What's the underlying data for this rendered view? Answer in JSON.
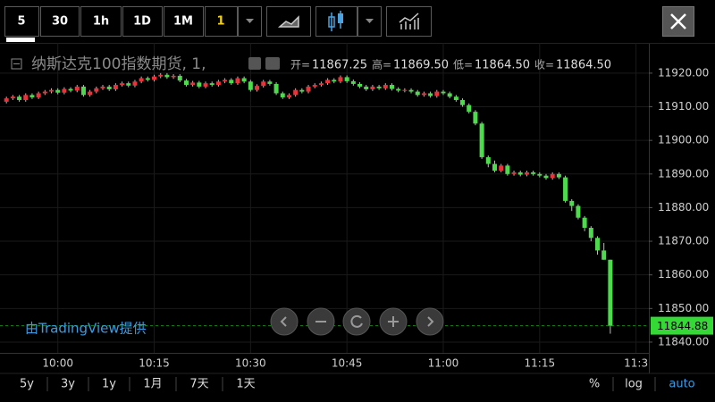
{
  "toolbar": {
    "intervals": [
      "5",
      "30",
      "1h",
      "1D",
      "1M",
      "1"
    ]
  },
  "bottom": {
    "ranges": [
      "5y",
      "3y",
      "1y",
      "1月",
      "7天",
      "1天"
    ],
    "options": [
      "%",
      "log",
      "auto"
    ]
  },
  "watermark": "由TradingView提供",
  "chart_data": {
    "type": "candlestick",
    "title": "纳斯达克100指数期货, 1,",
    "ohlc_legend": [
      {
        "label": "开=",
        "value": "11867.25"
      },
      {
        "label": "高=",
        "value": "11869.50"
      },
      {
        "label": "低=",
        "value": "11864.50"
      },
      {
        "label": "收=",
        "value": "11864.50"
      }
    ],
    "x": [
      "09:52",
      "09:53",
      "09:54",
      "09:55",
      "09:56",
      "09:57",
      "09:58",
      "09:59",
      "10:00",
      "10:01",
      "10:02",
      "10:03",
      "10:04",
      "10:05",
      "10:06",
      "10:07",
      "10:08",
      "10:09",
      "10:10",
      "10:11",
      "10:12",
      "10:13",
      "10:14",
      "10:15",
      "10:16",
      "10:17",
      "10:18",
      "10:19",
      "10:20",
      "10:21",
      "10:22",
      "10:23",
      "10:24",
      "10:25",
      "10:26",
      "10:27",
      "10:28",
      "10:29",
      "10:30",
      "10:31",
      "10:32",
      "10:33",
      "10:34",
      "10:35",
      "10:36",
      "10:37",
      "10:38",
      "10:39",
      "10:40",
      "10:41",
      "10:42",
      "10:43",
      "10:44",
      "10:45",
      "10:46",
      "10:47",
      "10:48",
      "10:49",
      "10:50",
      "10:51",
      "10:52",
      "10:53",
      "10:54",
      "10:55",
      "10:56",
      "10:57",
      "10:58",
      "10:59",
      "11:00",
      "11:01",
      "11:02",
      "11:03",
      "11:04",
      "11:05",
      "11:06",
      "11:07",
      "11:08",
      "11:09",
      "11:10",
      "11:11",
      "11:12",
      "11:13",
      "11:14",
      "11:15",
      "11:16",
      "11:17",
      "11:18",
      "11:19",
      "11:20",
      "11:21",
      "11:22",
      "11:23",
      "11:24",
      "11:25",
      "11:26"
    ],
    "candles": [
      [
        11911.5,
        11913.0,
        11911.0,
        11912.5
      ],
      [
        11912.5,
        11913.5,
        11912.0,
        11913.0
      ],
      [
        11913.0,
        11913.5,
        11911.5,
        11912.0
      ],
      [
        11912.0,
        11914.0,
        11911.5,
        11913.5
      ],
      [
        11913.5,
        11914.0,
        11912.3,
        11912.8
      ],
      [
        11912.8,
        11914.5,
        11912.3,
        11914.0
      ],
      [
        11914.0,
        11915.0,
        11913.5,
        11914.5
      ],
      [
        11914.5,
        11915.5,
        11914.0,
        11915.0
      ],
      [
        11915.0,
        11915.5,
        11913.7,
        11914.2
      ],
      [
        11914.2,
        11915.8,
        11913.7,
        11915.3
      ],
      [
        11915.3,
        11915.8,
        11914.3,
        11914.8
      ],
      [
        11914.8,
        11916.5,
        11914.3,
        11916.0
      ],
      [
        11916.0,
        11916.5,
        11913.0,
        11913.5
      ],
      [
        11913.5,
        11915.0,
        11913.0,
        11914.5
      ],
      [
        11914.5,
        11916.0,
        11914.0,
        11915.5
      ],
      [
        11915.5,
        11916.5,
        11915.0,
        11916.0
      ],
      [
        11916.0,
        11916.5,
        11914.7,
        11915.2
      ],
      [
        11915.2,
        11917.0,
        11914.7,
        11916.5
      ],
      [
        11916.5,
        11917.5,
        11916.0,
        11917.0
      ],
      [
        11917.0,
        11917.5,
        11915.8,
        11916.3
      ],
      [
        11916.3,
        11918.0,
        11915.8,
        11917.5
      ],
      [
        11917.5,
        11919.0,
        11917.0,
        11918.5
      ],
      [
        11918.5,
        11919.0,
        11917.5,
        11918.0
      ],
      [
        11918.0,
        11919.5,
        11917.5,
        11919.0
      ],
      [
        11919.0,
        11920.0,
        11918.5,
        11919.5
      ],
      [
        11919.5,
        11920.0,
        11918.3,
        11918.8
      ],
      [
        11918.8,
        11919.7,
        11918.3,
        11919.2
      ],
      [
        11919.2,
        11919.7,
        11917.3,
        11917.8
      ],
      [
        11917.8,
        11918.3,
        11916.0,
        11916.5
      ],
      [
        11916.5,
        11917.7,
        11916.0,
        11917.2
      ],
      [
        11917.2,
        11917.7,
        11915.5,
        11916.0
      ],
      [
        11916.0,
        11917.5,
        11915.5,
        11917.0
      ],
      [
        11917.0,
        11917.5,
        11916.0,
        11916.5
      ],
      [
        11916.5,
        11918.0,
        11916.0,
        11917.5
      ],
      [
        11917.5,
        11918.5,
        11917.0,
        11918.0
      ],
      [
        11918.0,
        11918.5,
        11916.5,
        11917.0
      ],
      [
        11917.0,
        11919.0,
        11916.5,
        11918.5
      ],
      [
        11918.5,
        11919.0,
        11917.0,
        11917.5
      ],
      [
        11917.5,
        11918.0,
        11914.5,
        11915.0
      ],
      [
        11915.0,
        11916.7,
        11914.5,
        11916.2
      ],
      [
        11916.2,
        11918.0,
        11915.7,
        11917.5
      ],
      [
        11917.5,
        11918.0,
        11916.3,
        11916.8
      ],
      [
        11916.8,
        11917.3,
        11913.5,
        11914.0
      ],
      [
        11914.0,
        11914.5,
        11912.3,
        11912.8
      ],
      [
        11912.8,
        11914.0,
        11912.3,
        11913.5
      ],
      [
        11913.5,
        11915.5,
        11913.0,
        11915.0
      ],
      [
        11915.0,
        11915.5,
        11914.0,
        11914.5
      ],
      [
        11914.5,
        11916.5,
        11914.0,
        11916.0
      ],
      [
        11916.0,
        11917.0,
        11915.5,
        11916.5
      ],
      [
        11916.5,
        11917.5,
        11916.0,
        11917.0
      ],
      [
        11917.0,
        11918.5,
        11916.5,
        11918.0
      ],
      [
        11918.0,
        11918.5,
        11917.0,
        11917.5
      ],
      [
        11917.5,
        11919.3,
        11917.0,
        11918.8
      ],
      [
        11918.8,
        11919.3,
        11917.1,
        11917.6
      ],
      [
        11917.6,
        11918.1,
        11916.3,
        11916.8
      ],
      [
        11916.8,
        11917.3,
        11915.5,
        11916.0
      ],
      [
        11916.0,
        11916.5,
        11914.7,
        11915.2
      ],
      [
        11915.2,
        11916.5,
        11914.7,
        11916.0
      ],
      [
        11916.0,
        11916.5,
        11915.0,
        11915.5
      ],
      [
        11915.5,
        11917.0,
        11915.0,
        11916.5
      ],
      [
        11916.5,
        11917.0,
        11914.8,
        11915.3
      ],
      [
        11915.3,
        11915.8,
        11914.3,
        11914.8
      ],
      [
        11914.8,
        11915.5,
        11914.3,
        11915.0
      ],
      [
        11915.0,
        11915.5,
        11914.0,
        11914.5
      ],
      [
        11914.5,
        11915.0,
        11913.0,
        11913.5
      ],
      [
        11913.5,
        11914.5,
        11913.0,
        11914.0
      ],
      [
        11914.0,
        11914.5,
        11912.7,
        11913.2
      ],
      [
        11913.2,
        11915.0,
        11912.7,
        11914.5
      ],
      [
        11914.5,
        11915.0,
        11913.5,
        11914.0
      ],
      [
        11914.0,
        11914.5,
        11912.5,
        11913.0
      ],
      [
        11913.0,
        11913.5,
        11911.5,
        11912.0
      ],
      [
        11912.0,
        11912.5,
        11910.0,
        11910.5
      ],
      [
        11910.5,
        11911.0,
        11908.0,
        11908.5
      ],
      [
        11908.5,
        11909.0,
        11904.5,
        11905.0
      ],
      [
        11905.0,
        11905.5,
        11894.5,
        11895.0
      ],
      [
        11895.0,
        11895.5,
        11892.0,
        11893.0
      ],
      [
        11893.0,
        11894.0,
        11890.5,
        11891.0
      ],
      [
        11891.0,
        11893.0,
        11890.5,
        11892.5
      ],
      [
        11892.5,
        11893.0,
        11889.5,
        11890.0
      ],
      [
        11890.0,
        11891.0,
        11889.5,
        11890.5
      ],
      [
        11890.5,
        11891.0,
        11889.3,
        11889.8
      ],
      [
        11889.8,
        11891.0,
        11889.3,
        11890.5
      ],
      [
        11890.5,
        11891.0,
        11889.5,
        11890.0
      ],
      [
        11890.0,
        11890.5,
        11889.0,
        11889.5
      ],
      [
        11889.5,
        11890.0,
        11888.3,
        11888.8
      ],
      [
        11888.8,
        11890.5,
        11888.3,
        11890.0
      ],
      [
        11890.0,
        11890.5,
        11888.5,
        11889.0
      ],
      [
        11889.0,
        11889.5,
        11881.5,
        11882.0
      ],
      [
        11882.0,
        11882.5,
        11879.0,
        11880.5
      ],
      [
        11880.5,
        11881.0,
        11876.5,
        11877.0
      ],
      [
        11877.0,
        11877.5,
        11873.0,
        11874.0
      ],
      [
        11874.0,
        11874.5,
        11870.0,
        11871.0
      ],
      [
        11871.0,
        11871.5,
        11866.0,
        11867.25
      ],
      [
        11867.25,
        11869.5,
        11864.5,
        11864.5
      ],
      [
        11864.5,
        11864.5,
        11842.5,
        11844.88
      ]
    ],
    "xlim": [
      "09:51",
      "11:32"
    ],
    "xticks": [
      "10:00",
      "10:15",
      "10:30",
      "10:45",
      "11:00",
      "11:15",
      {
        "value": "11:30",
        "label": "11:3"
      }
    ],
    "ylim": [
      11836.8,
      11929
    ],
    "yticks": [
      {
        "value": 11840,
        "label": "11840.00"
      },
      {
        "value": 11850,
        "label": "11850.00"
      },
      {
        "value": 11860,
        "label": "11860.00"
      },
      {
        "value": 11870,
        "label": "11870.00"
      },
      {
        "value": 11880,
        "label": "11880.00"
      },
      {
        "value": 11890,
        "label": "11890.00"
      },
      {
        "value": 11900,
        "label": "11900.00"
      },
      {
        "value": 11910,
        "label": "11910.00"
      },
      {
        "value": 11920,
        "label": "11920.00"
      }
    ],
    "up_color": "#e8333a",
    "down_color": "#4ddb4d",
    "last_price_color": "#35d935",
    "grid": true
  }
}
